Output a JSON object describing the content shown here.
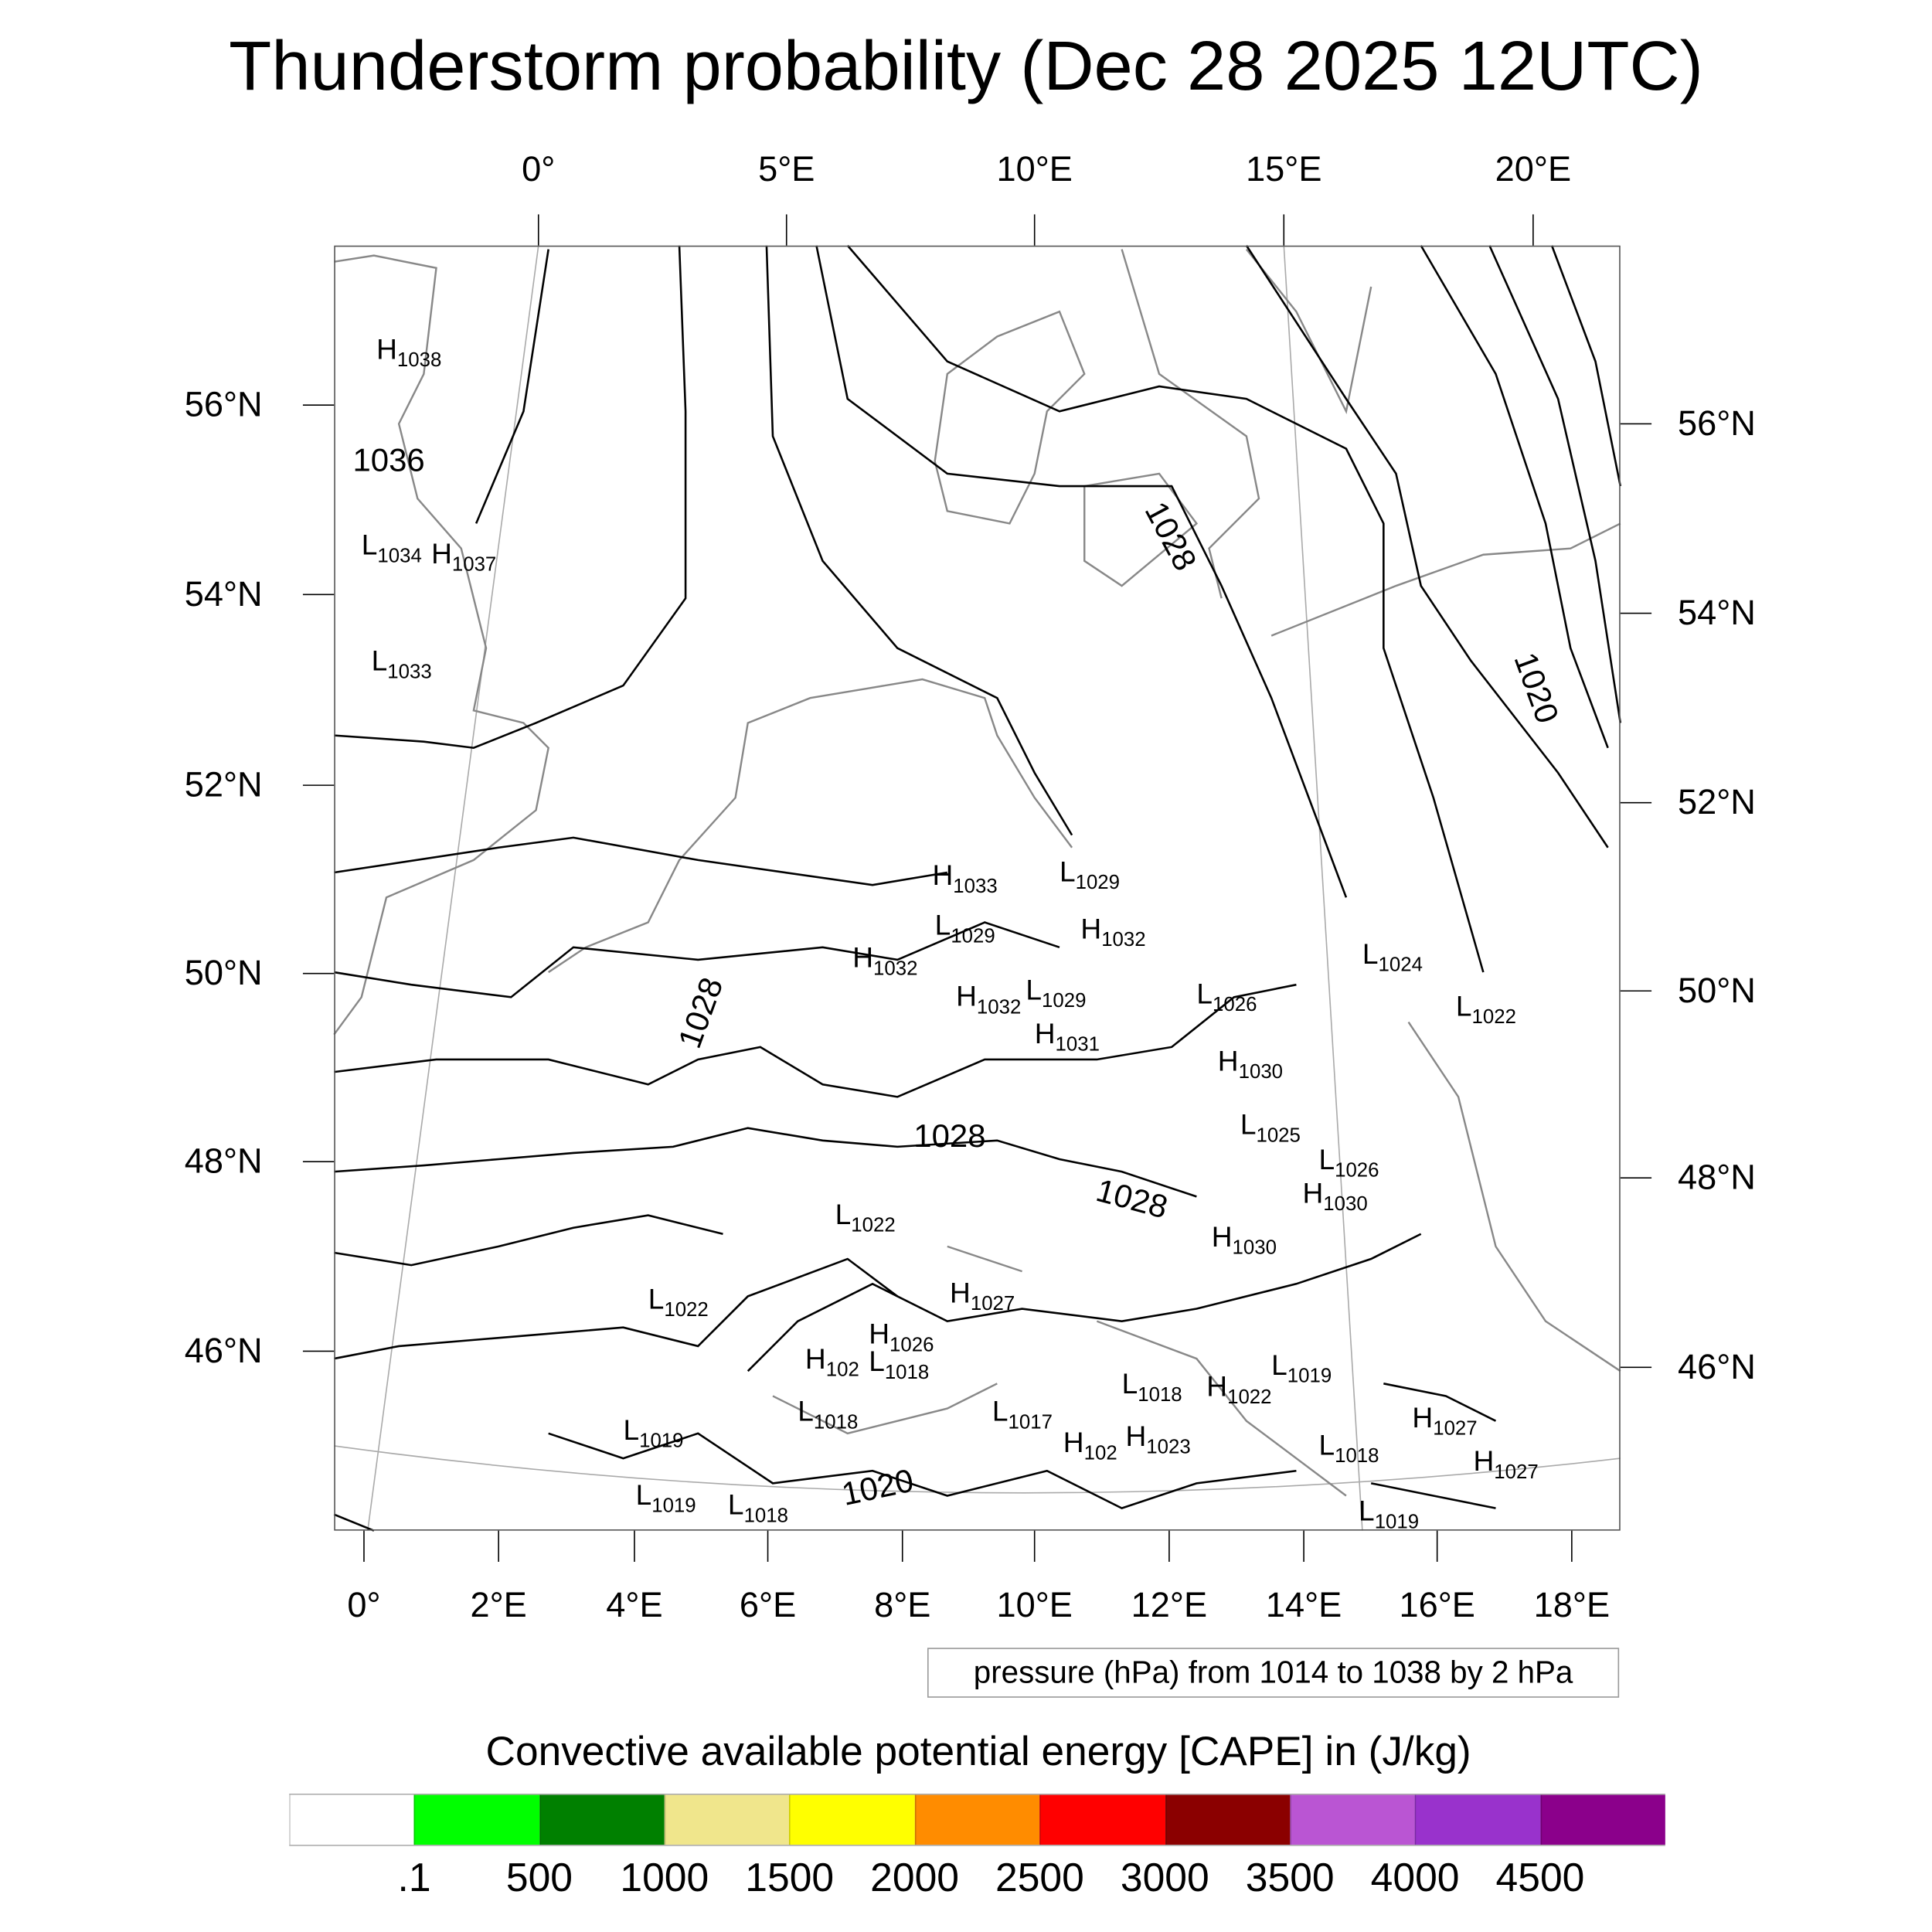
{
  "chart_data": {
    "type": "contour-map",
    "title": "Thunderstorm probability (Dec 28 2025 12UTC)",
    "top_lon_ticks": [
      "0°",
      "5°E",
      "10°E",
      "15°E",
      "20°E"
    ],
    "bottom_lon_ticks": [
      "0°",
      "2°E",
      "4°E",
      "6°E",
      "8°E",
      "10°E",
      "12°E",
      "14°E",
      "16°E",
      "18°E"
    ],
    "left_lat_ticks": [
      "56°N",
      "54°N",
      "52°N",
      "50°N",
      "48°N",
      "46°N"
    ],
    "right_lat_ticks": [
      "56°N",
      "54°N",
      "52°N",
      "50°N",
      "48°N",
      "46°N"
    ],
    "contour_info": "pressure (hPa) from 1014 to 1038 by 2 hPa",
    "contour_range": [
      1014,
      1038
    ],
    "contour_interval": 2,
    "pressure_labels": [
      "H1038",
      "1036",
      "L1034",
      "H1037",
      "L1033",
      "1028",
      "1020",
      "H1033",
      "L1029",
      "L1029",
      "H1032",
      "H1032",
      "H1032",
      "L1029",
      "H1031",
      "L1026",
      "L1024",
      "L1022",
      "H1030",
      "1028",
      "1028",
      "1028",
      "L1025",
      "L1026",
      "H1030",
      "L1022",
      "H1030",
      "H1027",
      "L1022",
      "H1026",
      "H102",
      "L1018",
      "L1018",
      "H1022",
      "L1019",
      "L1018",
      "L1017",
      "H1027",
      "L1019",
      "H102",
      "H1023",
      "L1018",
      "H1027",
      "1020",
      "L1019",
      "L1018",
      "L1019"
    ],
    "colorbar": {
      "title": "Convective available potential energy [CAPE] in (J/kg)",
      "labels": [
        ".1",
        "500",
        "1000",
        "1500",
        "2000",
        "2500",
        "3000",
        "3500",
        "4000",
        "4500"
      ],
      "colors": [
        "#ffffff",
        "#00ff00",
        "#008000",
        "#f0e68c",
        "#ffff00",
        "#ff8c00",
        "#ff0000",
        "#8b0000",
        "#ba55d3",
        "#9932cc",
        "#8b008b"
      ]
    }
  }
}
